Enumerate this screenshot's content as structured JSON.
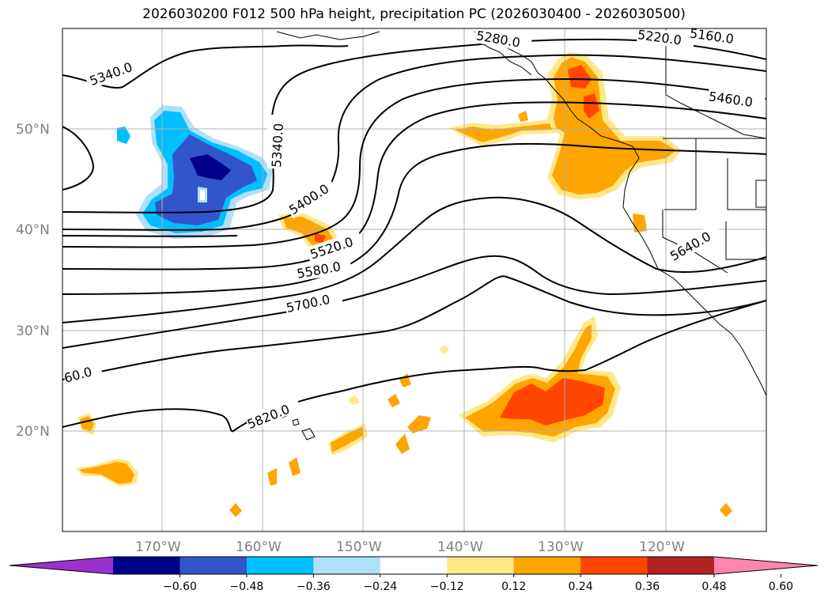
{
  "title": "2026030200 F012 500 hPa height, precipitation PC (2026030400 - 2026030500)",
  "map": {
    "lat_labels": [
      "50°N",
      "40°N",
      "30°N",
      "20°N"
    ],
    "lon_labels": [
      "170°W",
      "160°W",
      "150°W",
      "140°W",
      "130°W",
      "120°W"
    ],
    "gridline_color": "#b0b0b0",
    "land_outline_color": "#000000"
  },
  "height_contours": {
    "units": "m",
    "labels": [
      "5160.0",
      "5220.0",
      "5280.0",
      "5340.0",
      "5340.0",
      "5400.0",
      "5460.0",
      "5520.0",
      "5580.0",
      "5640.0",
      "5700.0",
      "5820.0",
      "60.0"
    ]
  },
  "precipitation_colors": {
    "neg_extreme": "#9932cc",
    "neg_060": "#00008b",
    "neg_048": "#3355cc",
    "neg_036": "#00bfff",
    "neg_024": "#b0e0f8",
    "neutral": "#ffffff",
    "pos_012": "#ffe88a",
    "pos_024": "#ffa500",
    "pos_036": "#ff4500",
    "pos_048": "#b22222",
    "pos_extreme": "#ff85b0"
  },
  "colorbar": {
    "ticks": [
      "−0.60",
      "−0.48",
      "−0.36",
      "−0.24",
      "−0.12",
      "0.12",
      "0.24",
      "0.36",
      "0.48",
      "0.60"
    ],
    "segments": [
      "#9932cc",
      "#00008b",
      "#3355cc",
      "#00bfff",
      "#b0e0f8",
      "#ffffff",
      "#ffe88a",
      "#ffa500",
      "#ff4500",
      "#b22222",
      "#ff85b0"
    ]
  }
}
